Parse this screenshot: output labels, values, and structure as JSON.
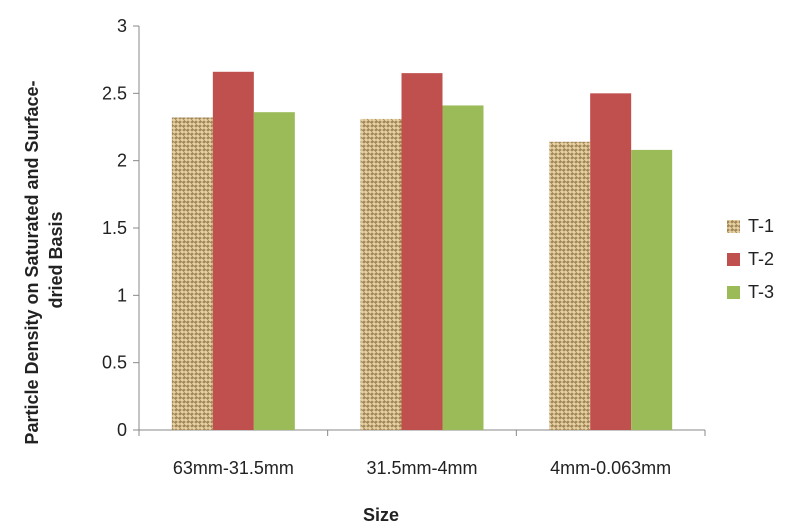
{
  "chart_data": {
    "type": "bar",
    "xlabel": "Size",
    "ylabel": "Particle Density on Saturated and Surface-dried Basis",
    "ylabel_lines": [
      "Particle Density on Saturated and Surface-",
      "dried Basis"
    ],
    "categories": [
      "63mm-31.5mm",
      "31.5mm-4mm",
      "4mm-0.063mm"
    ],
    "series": [
      {
        "name": "T-1",
        "values": [
          2.32,
          2.31,
          2.14
        ],
        "color": "#c8a96e",
        "fill": "burlap-pattern"
      },
      {
        "name": "T-2",
        "values": [
          2.66,
          2.65,
          2.5
        ],
        "color": "#c0504d"
      },
      {
        "name": "T-3",
        "values": [
          2.36,
          2.41,
          2.08
        ],
        "color": "#9bbb59"
      }
    ],
    "ylim": [
      0,
      3
    ],
    "yticks": [
      0,
      0.5,
      1,
      1.5,
      2,
      2.5,
      3
    ],
    "ytick_labels": [
      "0",
      "0.5",
      "1",
      "1.5",
      "2",
      "2.5",
      "3"
    ],
    "grid": false,
    "legend_position": "right"
  }
}
